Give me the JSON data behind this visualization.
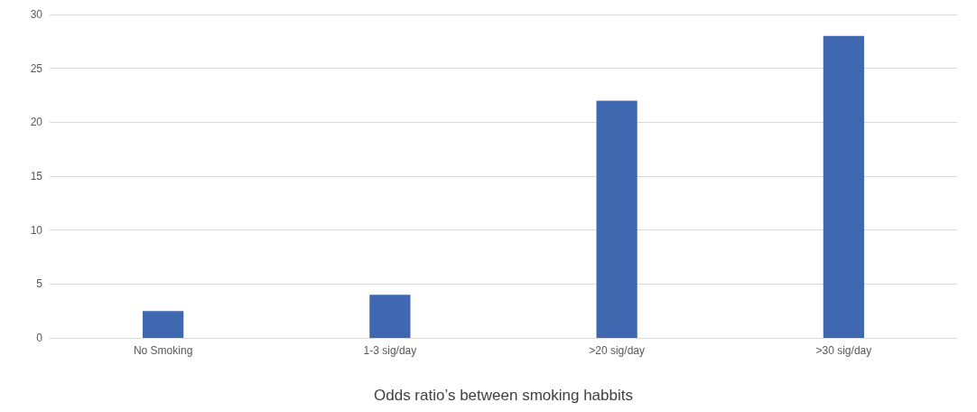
{
  "chart_data": {
    "type": "bar",
    "xlabel": "Odds ratio’s between smoking habbits",
    "categories": [
      "No Smoking",
      "1-3 sig/day",
      ">20 sig/day",
      ">30 sig/day"
    ],
    "values": [
      2.5,
      4,
      22,
      28
    ],
    "color": "#4068b0",
    "ylim": [
      0,
      30
    ],
    "yticks": [
      0,
      5,
      10,
      15,
      20,
      25,
      30
    ],
    "grid": "y"
  }
}
